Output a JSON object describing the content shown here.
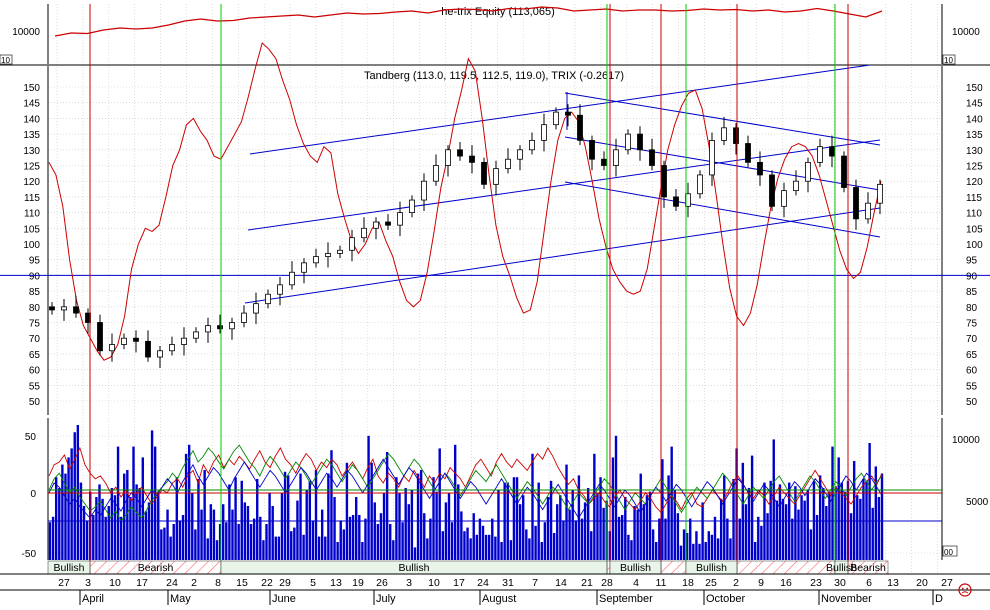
{
  "chart_data": [
    {
      "type": "line",
      "title": "he-trix Equity (113,065)",
      "y_tick_labels": [
        "10000"
      ],
      "corner_label": "10",
      "ylim": [
        8000,
        14000
      ],
      "series": [
        {
          "color": "#cc0000",
          "values": [
            10800,
            11100,
            11050,
            11400,
            11600,
            11500,
            11600,
            11900,
            12300,
            12500,
            12300,
            12350,
            12600,
            12700,
            12800,
            12900,
            12700,
            12900,
            13100,
            13000,
            13050,
            13200,
            13300,
            13100,
            13400,
            13500,
            13450,
            13300,
            13550,
            13500,
            13700,
            13600,
            13300,
            13400,
            13500,
            13300,
            13400,
            13400,
            13300,
            13350,
            13500,
            13400,
            13450,
            13300,
            13400,
            13200,
            13300,
            13550,
            13300,
            13000,
            12700,
            13300
          ]
        }
      ]
    },
    {
      "type": "line",
      "title": "Tandberg (113.0, 119.5, 112.5, 119.0), TRIX (-0.2617)",
      "y_tick_labels": [
        "150",
        "145",
        "140",
        "135",
        "130",
        "125",
        "120",
        "115",
        "110",
        "105",
        "100",
        "95",
        "90",
        "85",
        "80",
        "75",
        "70",
        "65",
        "60",
        "55",
        "50"
      ],
      "ylim": [
        47,
        152
      ],
      "price_close": [
        79,
        80,
        78,
        75,
        66,
        68,
        70,
        69,
        64,
        66,
        68,
        70,
        72,
        74,
        73,
        75,
        78,
        81,
        84,
        87,
        91,
        94,
        96,
        97,
        98,
        102,
        105,
        107,
        106,
        110,
        114,
        120,
        125,
        130,
        128,
        126,
        119,
        124,
        127,
        130,
        133,
        138,
        142,
        141,
        133,
        127,
        125,
        130,
        135,
        130,
        125,
        115,
        112,
        116,
        122,
        133,
        137,
        132,
        126,
        122,
        112,
        117,
        120,
        126,
        131,
        128,
        118,
        108,
        113,
        119
      ],
      "trix": [
        126,
        122,
        112,
        95,
        82,
        74,
        70,
        66,
        63,
        64,
        68,
        77,
        92,
        100,
        105,
        104,
        106,
        115,
        125,
        130,
        138,
        140,
        136,
        133,
        128,
        127,
        131,
        135,
        139,
        147,
        156,
        164,
        162,
        159,
        152,
        146,
        138,
        132,
        128,
        126,
        131,
        129,
        116,
        108,
        101,
        97,
        100,
        105,
        107,
        101,
        96,
        88,
        82,
        80,
        82,
        91,
        104,
        118,
        128,
        140,
        149,
        159,
        155,
        140,
        122,
        106,
        96,
        90,
        83,
        78,
        79,
        88,
        104,
        120,
        133,
        140,
        142,
        139,
        131,
        120,
        108,
        99,
        92,
        88,
        85,
        84,
        85,
        92,
        105,
        118,
        130,
        138,
        144,
        148,
        149,
        143,
        131,
        116,
        100,
        86,
        77,
        74,
        78,
        87,
        100,
        112,
        121,
        127,
        131,
        132,
        131,
        128,
        122,
        114,
        106,
        98,
        92,
        89,
        91,
        99,
        110,
        120
      ],
      "trend_lines_color": "#0000cc",
      "horizontal_line": 90,
      "markers": {
        "buy_color": "#00cc00",
        "sell_color": "#cc0000",
        "buy_dates": [
          "May 15",
          "Sep 4",
          "Sep 21",
          "Nov 1"
        ],
        "sell_dates": [
          "Apr 3",
          "Sep 4",
          "Sep 18",
          "Oct 9",
          "Nov 8"
        ]
      }
    },
    {
      "type": "bar",
      "title": "",
      "left_tick_labels": [
        "50",
        "0",
        "-50"
      ],
      "right_tick_labels": [
        "10000",
        "5000"
      ],
      "corner_label": "00",
      "volume": [
        21,
        24,
        46,
        40,
        53,
        48,
        57,
        62,
        71,
        75,
        43,
        30,
        22,
        38,
        25,
        35,
        42,
        34,
        24,
        30,
        40,
        36,
        63,
        24,
        48,
        50,
        35,
        63,
        42,
        40,
        57,
        27,
        32,
        72,
        63,
        38,
        17,
        18,
        28,
        13,
        20,
        46,
        22,
        25,
        59,
        64,
        37,
        17,
        45,
        28,
        50,
        12,
        31,
        28,
        11,
        20,
        31,
        21,
        42,
        28,
        46,
        20,
        44,
        32,
        30,
        20,
        23,
        45,
        24,
        11,
        20,
        37,
        30,
        13,
        13,
        37,
        49,
        47,
        16,
        18,
        33,
        48,
        14,
        39,
        44,
        22,
        50,
        13,
        28,
        13,
        48,
        61,
        35,
        10,
        22,
        17,
        54,
        24,
        25,
        35,
        25,
        10,
        23,
        69,
        54,
        32,
        20,
        26,
        37,
        60,
        20,
        11,
        46,
        37,
        21,
        40,
        31,
        39,
        7,
        48,
        50,
        26,
        12,
        23,
        46,
        38,
        62,
        16,
        32,
        37,
        21,
        64,
        42,
        27,
        16,
        18,
        12,
        26,
        14,
        23,
        19,
        14,
        14,
        23,
        13,
        39,
        10,
        43,
        43,
        11,
        46,
        46,
        31,
        36,
        17,
        12,
        59,
        19,
        43,
        10,
        21,
        35,
        44,
        15,
        31,
        36,
        22,
        53,
        28,
        39,
        22,
        47,
        23,
        32,
        40,
        16,
        59,
        37,
        46,
        29,
        33,
        16,
        57,
        69,
        24,
        25,
        35,
        14,
        11,
        30,
        28,
        48,
        31,
        36,
        38,
        17,
        10,
        23,
        56,
        23,
        47,
        63,
        39,
        26,
        8,
        17,
        15,
        23,
        9,
        16,
        9,
        32,
        10,
        16,
        14,
        24,
        12,
        34,
        47,
        23,
        12,
        45,
        62,
        23,
        54,
        31,
        40,
        58,
        10,
        24,
        19,
        43,
        26,
        44,
        67,
        33,
        42,
        34,
        31,
        43,
        23,
        41,
        28,
        36,
        33,
        39,
        17,
        44,
        25,
        47,
        40,
        30,
        38,
        63,
        41,
        57,
        43,
        38,
        44,
        26,
        55,
        36,
        34,
        45,
        44,
        65,
        29,
        52,
        35,
        48
      ],
      "oscillators": [
        {
          "color": "#cc0000",
          "values": [
            60,
            68,
            70,
            75,
            65,
            72,
            80,
            68,
            62,
            58,
            60,
            55,
            48,
            52,
            45,
            50,
            42,
            48,
            52,
            46,
            40,
            45,
            50,
            48,
            55,
            58,
            52,
            60,
            64,
            55,
            68,
            62,
            70,
            75,
            66,
            72,
            68,
            74,
            70,
            65,
            72,
            78,
            70,
            66,
            74,
            80,
            72,
            68,
            62,
            70,
            76,
            72,
            64,
            70,
            66,
            72,
            68,
            60,
            65,
            70,
            64,
            58,
            66,
            72,
            60,
            55,
            62,
            58,
            52,
            60,
            56,
            64,
            58,
            52,
            60,
            55,
            62,
            58,
            66,
            62,
            58,
            52,
            60,
            68,
            72,
            66,
            60,
            70,
            76,
            70,
            66,
            72,
            68,
            64,
            70,
            76,
            72,
            80,
            74,
            66,
            60,
            54,
            58,
            50,
            46,
            40,
            44,
            48,
            42,
            38,
            45,
            50,
            44,
            40,
            36,
            42,
            48,
            44,
            38,
            34,
            40,
            46,
            42,
            36,
            44,
            48,
            40,
            38,
            44,
            50,
            46,
            42,
            48,
            56,
            60,
            54,
            48,
            44,
            50,
            46,
            40,
            46,
            52,
            48,
            44,
            40,
            46,
            52,
            58,
            64,
            58,
            52,
            46,
            52,
            48,
            44,
            40,
            46,
            52,
            56,
            60,
            54,
            62
          ]
        },
        {
          "color": "#008800",
          "values": [
            50,
            58,
            62,
            55,
            48,
            52,
            45,
            40,
            35,
            38,
            42,
            36,
            30,
            35,
            28,
            32,
            38,
            34,
            30,
            36,
            42,
            48,
            52,
            56,
            62,
            58,
            66,
            72,
            78,
            70,
            74,
            80,
            76,
            70,
            65,
            72,
            78,
            82,
            76,
            70,
            66,
            60,
            68,
            74,
            70,
            64,
            58,
            64,
            70,
            66,
            60,
            54,
            60,
            66,
            72,
            68,
            62,
            56,
            62,
            68,
            64,
            58,
            52,
            58,
            64,
            70,
            76,
            72,
            66,
            60,
            66,
            72,
            68,
            62,
            56,
            50,
            56,
            62,
            58,
            52,
            46,
            52,
            58,
            64,
            60,
            56,
            62,
            68,
            62,
            56,
            50,
            44,
            50,
            56,
            52,
            46,
            40,
            46,
            52,
            48,
            42,
            36,
            42,
            48,
            44,
            40,
            46,
            52,
            58,
            54,
            48,
            42,
            36,
            42,
            48,
            44,
            40,
            46,
            52,
            58,
            52,
            46,
            40,
            34,
            40,
            46,
            52,
            48,
            44,
            50,
            56,
            62,
            58,
            52,
            46,
            40,
            46,
            52,
            48,
            44,
            50,
            56,
            60,
            54,
            48,
            42,
            48,
            54,
            60,
            56,
            50,
            44,
            50,
            56,
            52,
            46,
            52,
            58,
            62,
            56,
            50,
            56,
            60
          ]
        },
        {
          "color": "#0000cc",
          "values": [
            48,
            55,
            52,
            46,
            40,
            44,
            38,
            34,
            30,
            36,
            32,
            38,
            44,
            40,
            35,
            42,
            48,
            44,
            38,
            44,
            50,
            46,
            52,
            58,
            54,
            48,
            56,
            62,
            68,
            60,
            54,
            60,
            66,
            62,
            56,
            50,
            58,
            64,
            70,
            64,
            58,
            52,
            58,
            64,
            60,
            54,
            48,
            54,
            60,
            66,
            62,
            56,
            50,
            56,
            62,
            58,
            52,
            58,
            64,
            60,
            54,
            48,
            54,
            60,
            66,
            72,
            66,
            60,
            54,
            60,
            66,
            62,
            56,
            50,
            44,
            50,
            56,
            62,
            56,
            50,
            44,
            50,
            56,
            52,
            46,
            40,
            46,
            52,
            58,
            52,
            46,
            40,
            46,
            52,
            48,
            42,
            36,
            42,
            48,
            54,
            48,
            42,
            36,
            30,
            36,
            42,
            48,
            54,
            50,
            44,
            38,
            44,
            50,
            46,
            40,
            34,
            40,
            46,
            52,
            48,
            42,
            48,
            54,
            50,
            44,
            38,
            44,
            50,
            56,
            52,
            46,
            40,
            46,
            52,
            58,
            54,
            48,
            42,
            48,
            54,
            50,
            44,
            38,
            44,
            50,
            56,
            52,
            46,
            52,
            58,
            54,
            48,
            42,
            48,
            54,
            60,
            56,
            50,
            56,
            62,
            58,
            52,
            46
          ]
        }
      ],
      "signal_bands": [
        {
          "label": "Bullish",
          "kind": "bullish"
        },
        {
          "label": "Bearish",
          "kind": "bearish"
        },
        {
          "label": "Bullish",
          "kind": "bullish"
        },
        {
          "label": "",
          "kind": "bearish"
        },
        {
          "label": "Bullish",
          "kind": "bullish"
        },
        {
          "label": "",
          "kind": "bearish"
        },
        {
          "label": "Bullish",
          "kind": "bullish"
        },
        {
          "label": "",
          "kind": "bearish"
        },
        {
          "label": "Bullish",
          "kind": "bullish"
        },
        {
          "label": "Bearish",
          "kind": "bearish"
        },
        {
          "label": "",
          "kind": "bullish"
        },
        {
          "label": "",
          "kind": "bearish"
        }
      ]
    }
  ],
  "x_axis": {
    "day_labels": [
      "27",
      "3",
      "10",
      "17",
      "24",
      "2",
      "8",
      "15",
      "22",
      "29",
      "5",
      "13",
      "19",
      "26",
      "3",
      "10",
      "17",
      "24",
      "31",
      "7",
      "14",
      "21",
      "28",
      "4",
      "11",
      "18",
      "25",
      "2",
      "9",
      "16",
      "23",
      "30",
      "6",
      "13",
      "20",
      "27"
    ],
    "month_labels": [
      "April",
      "May",
      "June",
      "July",
      "August",
      "September",
      "October",
      "November",
      "D"
    ]
  },
  "colors": {
    "background": "#ffffff",
    "grid": "#c8c8c8",
    "candle_up": "#ffffff",
    "candle_down": "#000000",
    "trix": "#cc0000",
    "volume": "#0000cc",
    "bullish_fill": "#e8f5e8",
    "bearish_hatch": "#ff6666"
  },
  "status_icon": "sad-face-icon"
}
